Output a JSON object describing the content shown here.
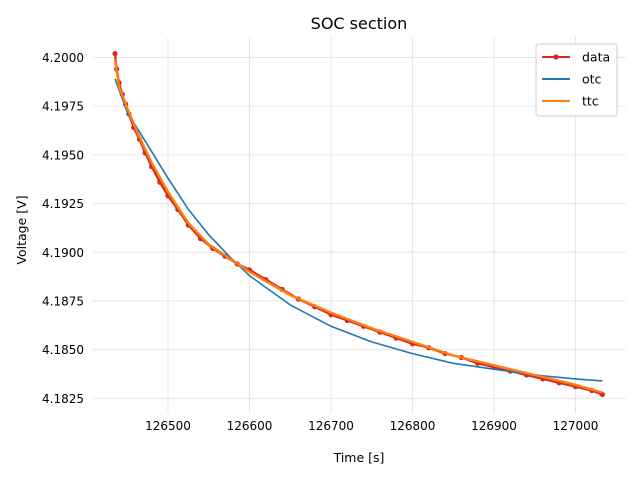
{
  "chart_data": {
    "type": "line",
    "title": "SOC section",
    "xlabel": "Time [s]",
    "ylabel": "Voltage [V]",
    "xlim": [
      126408,
      127062
    ],
    "ylim": [
      4.18175,
      4.20105
    ],
    "xticks": [
      126500,
      126600,
      126700,
      126800,
      126900,
      127000
    ],
    "xtick_labels": [
      "126500",
      "126600",
      "126700",
      "126800",
      "126900",
      "127000"
    ],
    "yticks": [
      4.1825,
      4.185,
      4.1875,
      4.19,
      4.1925,
      4.195,
      4.1975,
      4.2
    ],
    "ytick_labels": [
      "4.1825",
      "4.1850",
      "4.1875",
      "4.1900",
      "4.1925",
      "4.1950",
      "4.1975",
      "4.2000"
    ],
    "grid": true,
    "legend_position": "top-right",
    "series": [
      {
        "name": "data",
        "color": "#d62728",
        "marker": "circle",
        "x": [
          126435,
          126437,
          126440,
          126444,
          126448,
          126452,
          126458,
          126465,
          126472,
          126480,
          126490,
          126500,
          126512,
          126525,
          126540,
          126555,
          126570,
          126585,
          126600,
          126620,
          126640,
          126660,
          126680,
          126700,
          126720,
          126740,
          126760,
          126780,
          126800,
          126820,
          126840,
          126860,
          126880,
          126900,
          126920,
          126940,
          126960,
          126980,
          127000,
          127020,
          127033
        ],
        "y": [
          4.2002,
          4.1994,
          4.1987,
          4.1981,
          4.1976,
          4.1971,
          4.1964,
          4.1958,
          4.1951,
          4.1944,
          4.1936,
          4.1929,
          4.1922,
          4.1914,
          4.1907,
          4.1902,
          4.1898,
          4.1894,
          4.1891,
          4.1886,
          4.1881,
          4.1876,
          4.1872,
          4.1868,
          4.1865,
          4.1862,
          4.1859,
          4.1856,
          4.1853,
          4.1851,
          4.1848,
          4.1846,
          4.1843,
          4.1841,
          4.1839,
          4.1837,
          4.1835,
          4.1833,
          4.1831,
          4.1829,
          4.1827
        ]
      },
      {
        "name": "otc",
        "color": "#1f77b4",
        "marker": "none",
        "x": [
          126435,
          126450,
          126475,
          126500,
          126525,
          126550,
          126575,
          126600,
          126650,
          126700,
          126750,
          126800,
          126850,
          126900,
          126950,
          127000,
          127033
        ],
        "y": [
          4.1989,
          4.1972,
          4.1955,
          4.1938,
          4.1922,
          4.1909,
          4.1898,
          4.1888,
          4.1873,
          4.1862,
          4.1854,
          4.1848,
          4.1843,
          4.184,
          4.1837,
          4.1835,
          4.1834
        ]
      },
      {
        "name": "ttc",
        "color": "#ff7f0e",
        "marker": "none",
        "x": [
          126435,
          126440,
          126450,
          126465,
          126480,
          126500,
          126525,
          126550,
          126575,
          126600,
          126650,
          126700,
          126750,
          126800,
          126850,
          126900,
          126950,
          127000,
          127033
        ],
        "y": [
          4.1999,
          4.1985,
          4.1974,
          4.1959,
          4.1946,
          4.1931,
          4.1915,
          4.1904,
          4.1897,
          4.189,
          4.1878,
          4.1869,
          4.1861,
          4.1854,
          4.1847,
          4.1842,
          4.1837,
          4.1832,
          4.1828
        ]
      }
    ]
  }
}
